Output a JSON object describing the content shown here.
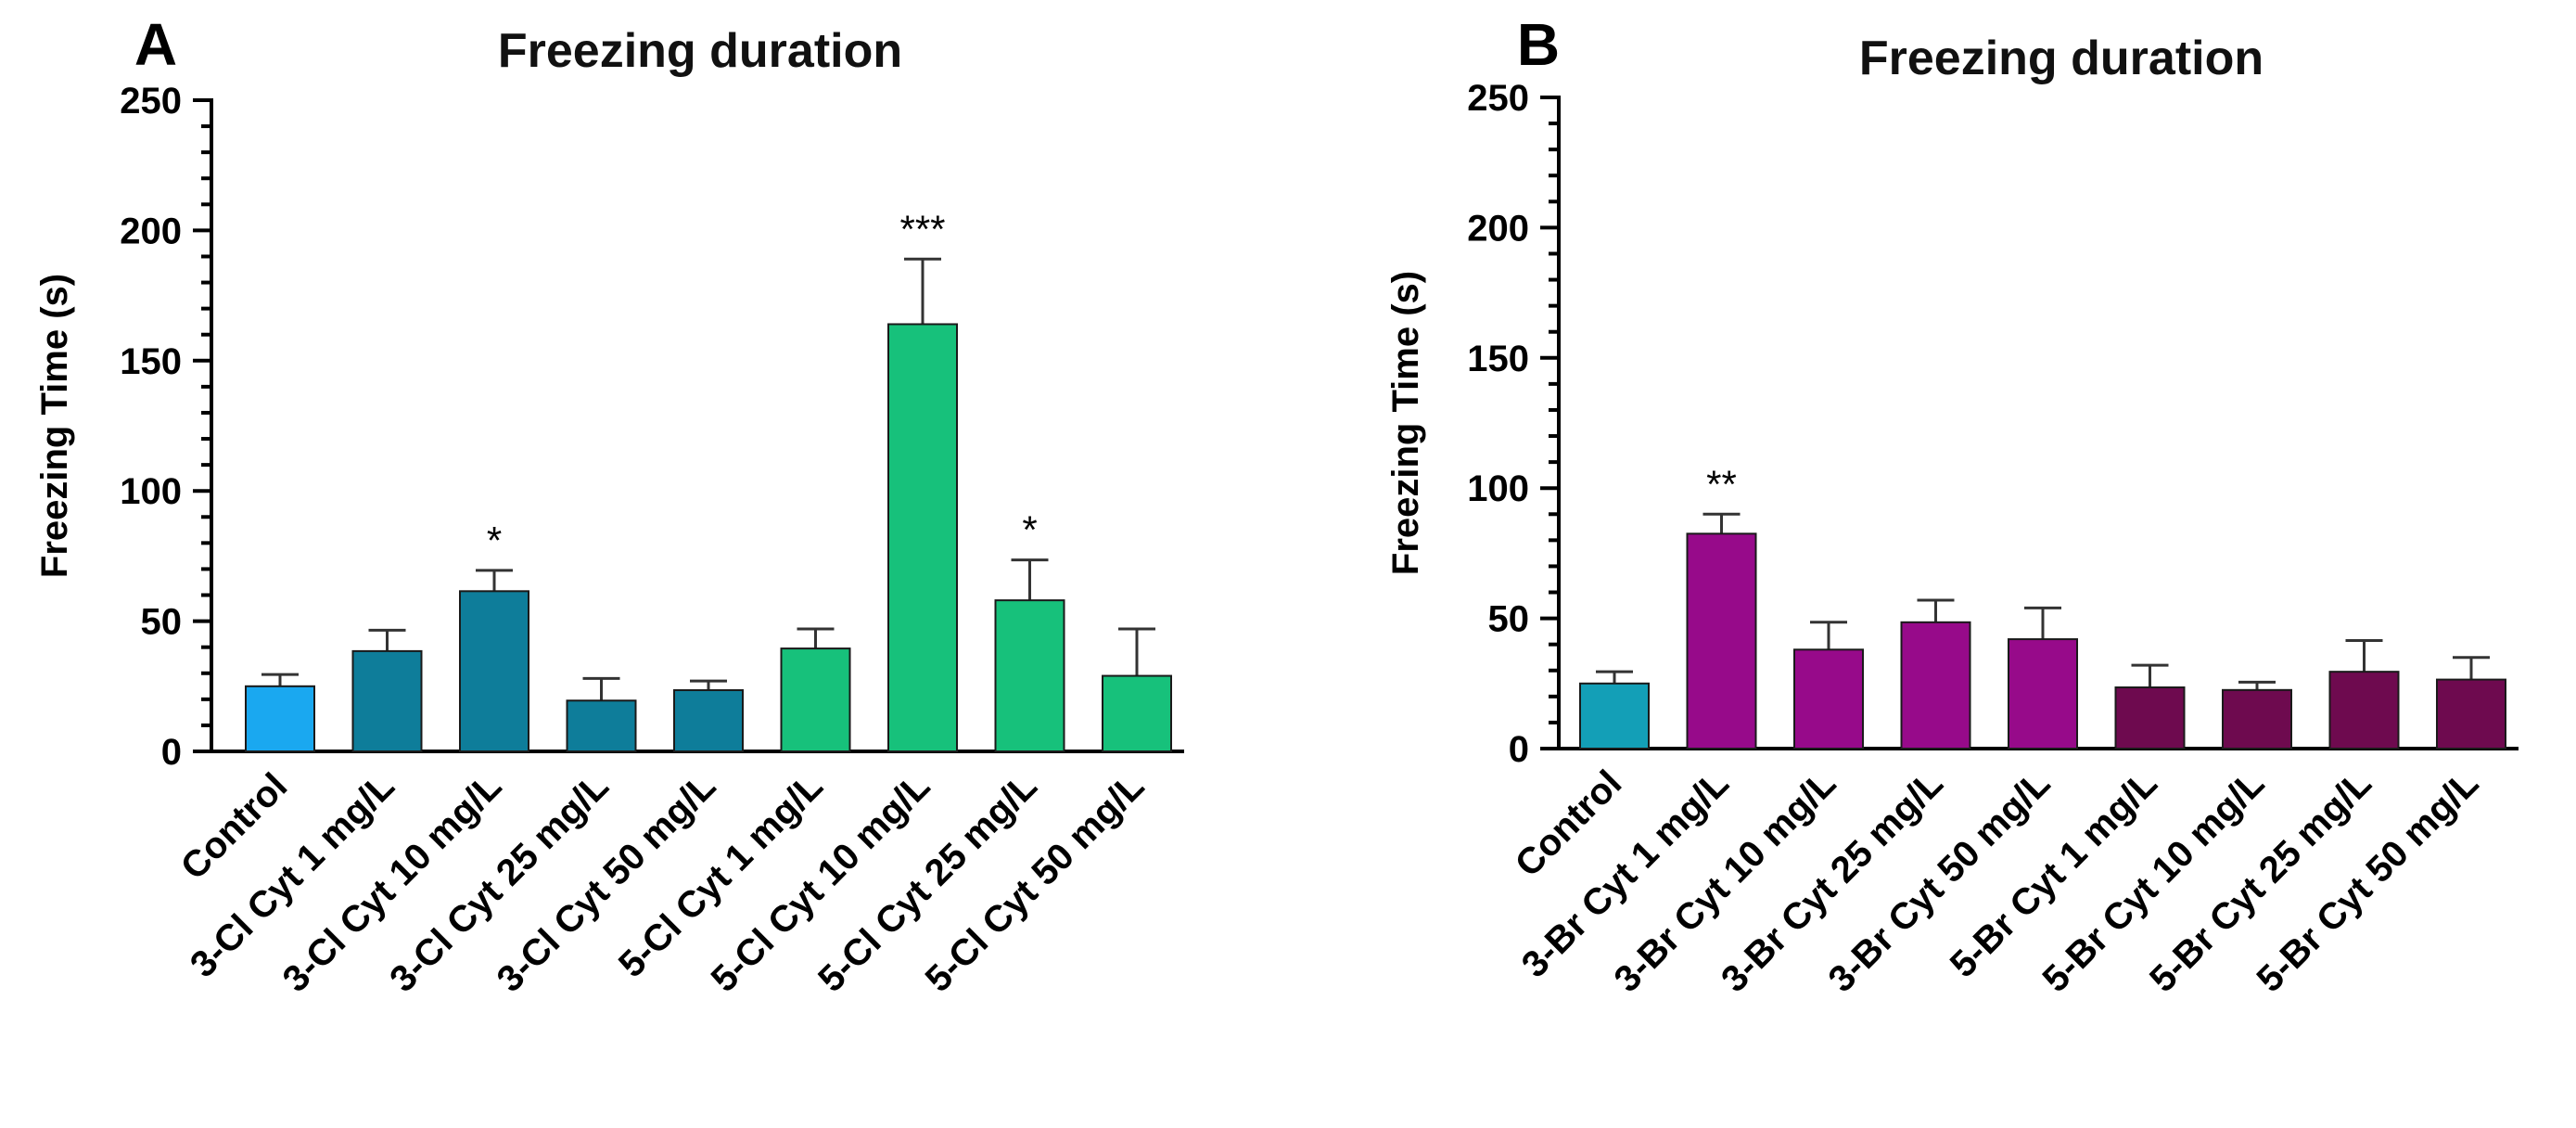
{
  "chart_data": [
    {
      "panel": "A",
      "type": "bar",
      "title": "Freezing duration",
      "ylabel": "Freezing Time (s)",
      "xlabel": "",
      "ylim": [
        0,
        250
      ],
      "yticks": [
        0,
        50,
        100,
        150,
        200,
        250
      ],
      "grid": false,
      "categories": [
        "Control",
        "3-Cl Cyt 1 mg/L",
        "3-Cl Cyt 10 mg/L",
        "3-Cl Cyt 25 mg/L",
        "3-Cl Cyt 50 mg/L",
        "5-Cl Cyt 1 mg/L",
        "5-Cl Cyt 10 mg/L",
        "5-Cl Cyt 25 mg/L",
        "5-Cl Cyt 50 mg/L"
      ],
      "values": [
        25,
        38.5,
        61.5,
        19.5,
        23.5,
        39.5,
        164,
        58,
        29
      ],
      "errors": [
        4.5,
        8,
        8,
        8.5,
        3.5,
        7.5,
        25,
        15.5,
        18
      ],
      "significance": [
        "",
        "",
        "*",
        "",
        "",
        "",
        "***",
        "*",
        ""
      ],
      "colors": [
        "#1aa8f0",
        "#0e7d9a",
        "#0e7d9a",
        "#0e7d9a",
        "#0e7d9a",
        "#17c17b",
        "#17c17b",
        "#17c17b",
        "#17c17b"
      ]
    },
    {
      "panel": "B",
      "type": "bar",
      "title": "Freezing duration",
      "ylabel": "Freezing Time (s)",
      "xlabel": "",
      "ylim": [
        0,
        250
      ],
      "yticks": [
        0,
        50,
        100,
        150,
        200,
        250
      ],
      "grid": false,
      "categories": [
        "Control",
        "3-Br Cyt 1 mg/L",
        "3-Br Cyt 10 mg/L",
        "3-Br Cyt 25 mg/L",
        "3-Br Cyt 50 mg/L",
        "5-Br Cyt 1 mg/L",
        "5-Br Cyt 10 mg/L",
        "5-Br Cyt 25 mg/L",
        "5-Br Cyt 50 mg/L"
      ],
      "values": [
        25,
        82.5,
        38,
        48.5,
        42,
        23.5,
        22.5,
        29.5,
        26.5
      ],
      "errors": [
        4.5,
        7.5,
        10.5,
        8.5,
        12,
        8.5,
        3,
        12,
        8.5
      ],
      "significance": [
        "",
        "**",
        "",
        "",
        "",
        "",
        "",
        "",
        ""
      ],
      "colors": [
        "#139fb7",
        "#970a8a",
        "#970a8a",
        "#970a8a",
        "#970a8a",
        "#6e0a4f",
        "#6e0a4f",
        "#6e0a4f",
        "#6e0a4f"
      ]
    }
  ]
}
